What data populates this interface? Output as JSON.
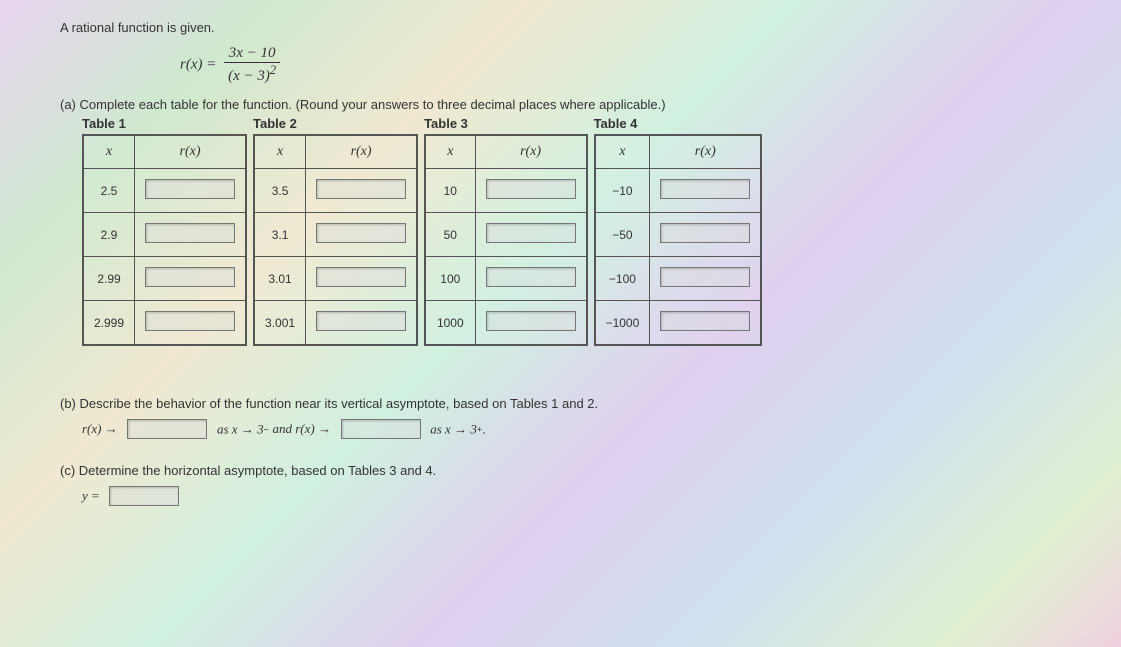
{
  "intro": "A rational function is given.",
  "formula": {
    "lhs": "r(x) =",
    "num": "3x − 10",
    "den_base": "(x − 3)",
    "den_exp": "2"
  },
  "partA": {
    "label": "(a)",
    "text": "Complete each table for the function. (Round your answers to three decimal places where applicable.)",
    "tables": [
      {
        "title": "Table 1",
        "header_x": "x",
        "header_r": "r(x)",
        "xvals": [
          "2.5",
          "2.9",
          "2.99",
          "2.999"
        ]
      },
      {
        "title": "Table 2",
        "header_x": "x",
        "header_r": "r(x)",
        "xvals": [
          "3.5",
          "3.1",
          "3.01",
          "3.001"
        ]
      },
      {
        "title": "Table 3",
        "header_x": "x",
        "header_r": "r(x)",
        "xvals": [
          "10",
          "50",
          "100",
          "1000"
        ]
      },
      {
        "title": "Table 4",
        "header_x": "x",
        "header_r": "r(x)",
        "xvals": [
          "−10",
          "−50",
          "−100",
          "−1000"
        ]
      }
    ]
  },
  "partB": {
    "label": "(b)",
    "text": "Describe the behavior of the function near its vertical asymptote, based on Tables 1 and 2.",
    "seg1": "r(x) →",
    "seg2": "as x → 3",
    "seg2_sup": "−",
    "seg3": " and r(x) →",
    "seg4": "as x → 3",
    "seg4_sup": "+",
    "seg5": "."
  },
  "partC": {
    "label": "(c)",
    "text": "Determine the horizontal asymptote, based on Tables 3 and 4.",
    "eq": "y ="
  }
}
